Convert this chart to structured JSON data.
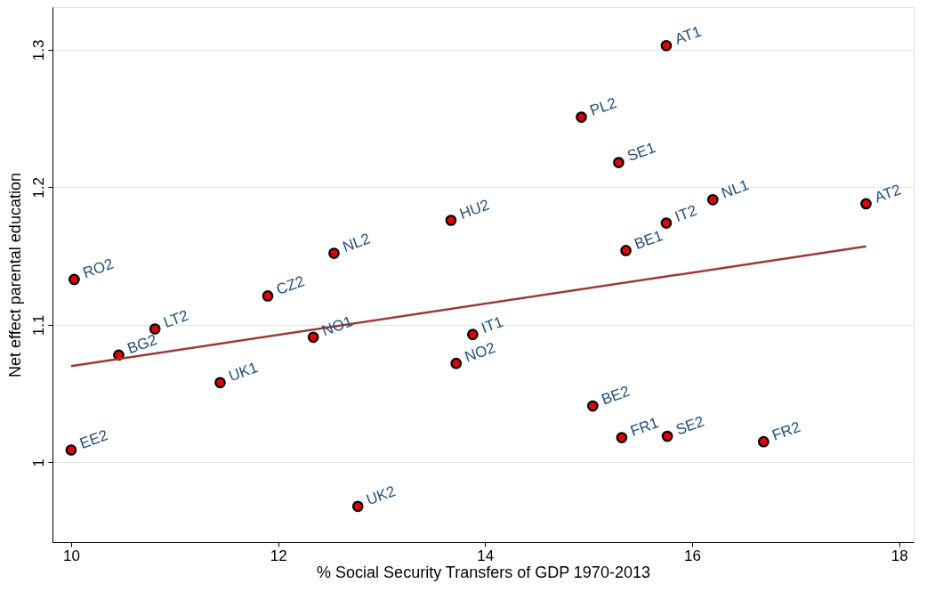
{
  "chart_data": {
    "type": "scatter",
    "xlabel": "% Social Security Transfers of GDP 1970-2013",
    "ylabel": "Net effect parental education",
    "xlim": [
      9.82,
      18.14
    ],
    "ylim": [
      0.942,
      1.331
    ],
    "xticks": [
      10,
      12,
      14,
      16,
      18
    ],
    "yticks": [
      1,
      1.1,
      1.2,
      1.3
    ],
    "grid": "y",
    "series": [
      {
        "marker": "circle",
        "color": "#e00000",
        "x": [
          10.03,
          10.46,
          10.81,
          10.0,
          11.44,
          11.9,
          12.34,
          12.54,
          12.77,
          13.67,
          13.88,
          13.72,
          14.93,
          15.29,
          15.04,
          15.32,
          15.36,
          15.75,
          15.76,
          15.75,
          16.2,
          16.69,
          17.68
        ],
        "values": [
          1.133,
          1.078,
          1.097,
          1.009,
          1.058,
          1.121,
          1.091,
          1.152,
          0.968,
          1.176,
          1.093,
          1.072,
          1.251,
          1.218,
          1.041,
          1.018,
          1.154,
          1.174,
          1.019,
          1.303,
          1.191,
          1.015,
          1.188
        ]
      },
      {
        "type": "line",
        "marker": "none",
        "color": "#9b3a3a",
        "x": [
          10.0,
          17.68
        ],
        "values": [
          1.07,
          1.157
        ]
      }
    ],
    "annotations": [
      {
        "text": "RO2",
        "x": 10.03,
        "y": 1.133
      },
      {
        "text": "BG2",
        "x": 10.46,
        "y": 1.078
      },
      {
        "text": "LT2",
        "x": 10.81,
        "y": 1.097
      },
      {
        "text": "EE2",
        "x": 10.0,
        "y": 1.009
      },
      {
        "text": "UK1",
        "x": 11.44,
        "y": 1.058
      },
      {
        "text": "CZ2",
        "x": 11.9,
        "y": 1.121
      },
      {
        "text": "NO1",
        "x": 12.34,
        "y": 1.091
      },
      {
        "text": "NL2",
        "x": 12.54,
        "y": 1.152
      },
      {
        "text": "UK2",
        "x": 12.77,
        "y": 0.968
      },
      {
        "text": "HU2",
        "x": 13.67,
        "y": 1.176
      },
      {
        "text": "IT1",
        "x": 13.88,
        "y": 1.093
      },
      {
        "text": "NO2",
        "x": 13.72,
        "y": 1.072
      },
      {
        "text": "PL2",
        "x": 14.93,
        "y": 1.251
      },
      {
        "text": "SE1",
        "x": 15.29,
        "y": 1.218
      },
      {
        "text": "BE2",
        "x": 15.04,
        "y": 1.041
      },
      {
        "text": "FR1",
        "x": 15.32,
        "y": 1.018
      },
      {
        "text": "BE1",
        "x": 15.36,
        "y": 1.154
      },
      {
        "text": "IT2",
        "x": 15.75,
        "y": 1.174
      },
      {
        "text": "SE2",
        "x": 15.76,
        "y": 1.019
      },
      {
        "text": "AT1",
        "x": 15.75,
        "y": 1.303
      },
      {
        "text": "NL1",
        "x": 16.2,
        "y": 1.191
      },
      {
        "text": "FR2",
        "x": 16.69,
        "y": 1.015
      },
      {
        "text": "AT2",
        "x": 17.68,
        "y": 1.188
      }
    ]
  }
}
